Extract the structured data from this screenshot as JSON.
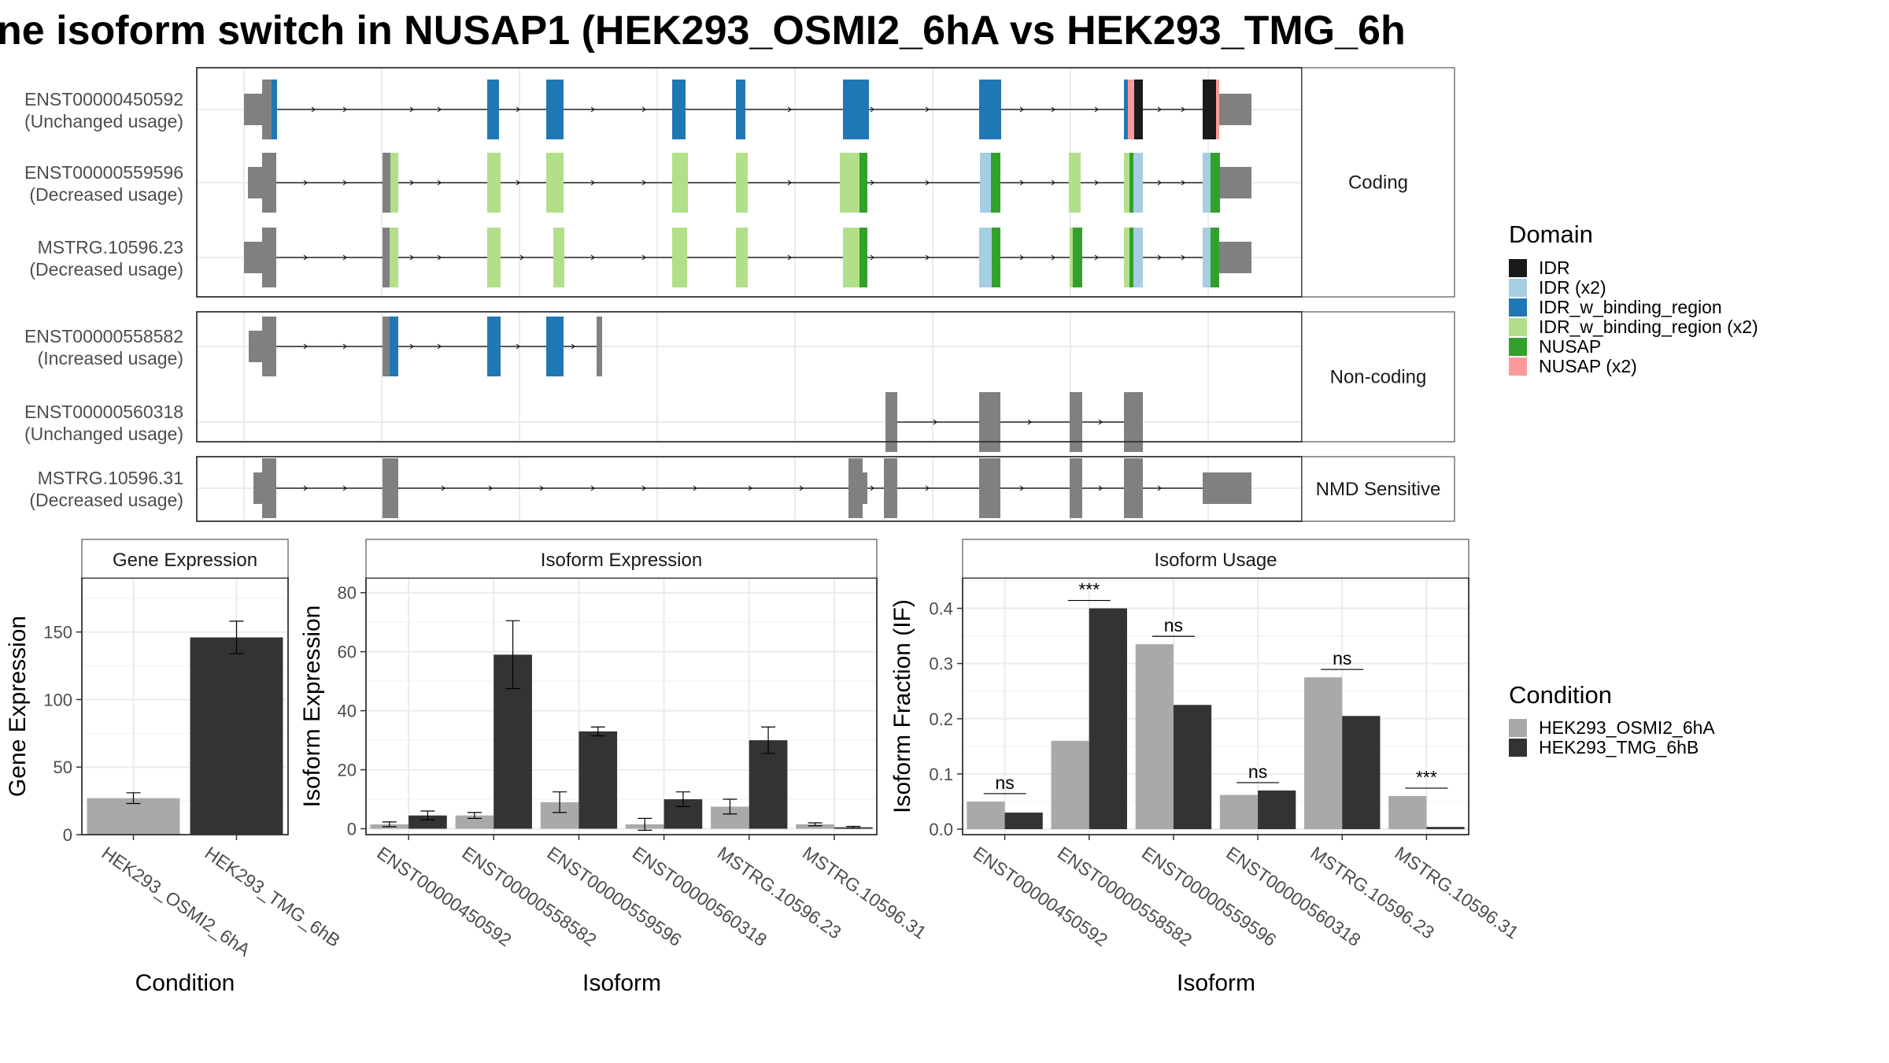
{
  "title": "ne isoform switch in NUSAP1 (HEK293_OSMI2_6hA vs HEK293_TMG_6h",
  "colors": {
    "IDR": "#1a1a1a",
    "IDR (x2)": "#a6cee3",
    "IDR_w_binding_region": "#1f78b4",
    "IDR_w_binding_region (x2)": "#b2df8a",
    "NUSAP": "#33a02c",
    "NUSAP (x2)": "#fb9a99",
    "exon": "#808080",
    "HEK293_OSMI2_6hA": "#a9a9a9",
    "HEK293_TMG_6hB": "#333333"
  },
  "structure": {
    "groups": [
      {
        "label": "Coding",
        "isoforms": [
          {
            "id": "ENST00000450592",
            "usage": "(Unchanged usage)"
          },
          {
            "id": "ENST00000559596",
            "usage": "(Decreased usage)"
          },
          {
            "id": "MSTRG.10596.23",
            "usage": "(Decreased usage)"
          }
        ]
      },
      {
        "label": "Non-coding",
        "isoforms": [
          {
            "id": "ENST00000558582",
            "usage": "(Increased usage)"
          },
          {
            "id": "ENST00000560318",
            "usage": "(Unchanged usage)"
          }
        ]
      },
      {
        "label": "NMD Sensitive",
        "isoforms": [
          {
            "id": "MSTRG.10596.31",
            "usage": "(Decreased usage)"
          }
        ]
      }
    ]
  },
  "legend_domain": {
    "title": "Domain",
    "items": [
      "IDR",
      "IDR (x2)",
      "IDR_w_binding_region",
      "IDR_w_binding_region (x2)",
      "NUSAP",
      "NUSAP (x2)"
    ]
  },
  "legend_condition": {
    "title": "Condition",
    "items": [
      "HEK293_OSMI2_6hA",
      "HEK293_TMG_6hB"
    ]
  },
  "chart_data": [
    {
      "type": "bar",
      "title": "Gene Expression",
      "xlabel": "Condition",
      "ylabel": "Gene Expression",
      "categories": [
        "HEK293_OSMI2_6hA",
        "HEK293_TMG_6hB"
      ],
      "values": [
        27,
        146
      ],
      "errors": [
        4,
        12
      ],
      "ylim": [
        0,
        190
      ],
      "yticks": [
        0,
        50,
        100,
        150
      ]
    },
    {
      "type": "bar",
      "title": "Isoform Expression",
      "xlabel": "Isoform",
      "ylabel": "Isoform Expression",
      "categories": [
        "ENST00000450592",
        "ENST00000558582",
        "ENST00000559596",
        "ENST00000560318",
        "MSTRG.10596.23",
        "MSTRG.10596.31"
      ],
      "series": [
        {
          "name": "HEK293_OSMI2_6hA",
          "values": [
            1.5,
            4.5,
            9,
            1.5,
            7.5,
            1.5
          ],
          "errors": [
            0.8,
            1.0,
            3.5,
            2.0,
            2.5,
            0.5
          ]
        },
        {
          "name": "HEK293_TMG_6hB",
          "values": [
            4.5,
            59,
            33,
            10,
            30,
            0.5
          ],
          "errors": [
            1.5,
            11.5,
            1.5,
            2.5,
            4.5,
            0.3
          ]
        }
      ],
      "ylim": [
        -2,
        85
      ],
      "yticks": [
        0,
        20,
        40,
        60,
        80
      ]
    },
    {
      "type": "bar",
      "title": "Isoform Usage",
      "xlabel": "Isoform",
      "ylabel": "Isoform Fraction (IF)",
      "categories": [
        "ENST00000450592",
        "ENST00000558582",
        "ENST00000559596",
        "ENST00000560318",
        "MSTRG.10596.23",
        "MSTRG.10596.31"
      ],
      "series": [
        {
          "name": "HEK293_OSMI2_6hA",
          "values": [
            0.05,
            0.16,
            0.335,
            0.062,
            0.275,
            0.06
          ]
        },
        {
          "name": "HEK293_TMG_6hB",
          "values": [
            0.03,
            0.4,
            0.225,
            0.07,
            0.205,
            0.004
          ]
        }
      ],
      "significance": [
        "ns",
        "***",
        "ns",
        "ns",
        "ns",
        "***"
      ],
      "ylim": [
        -0.01,
        0.455
      ],
      "yticks": [
        "0.0",
        "0.1",
        "0.2",
        "0.3",
        "0.4"
      ]
    }
  ]
}
